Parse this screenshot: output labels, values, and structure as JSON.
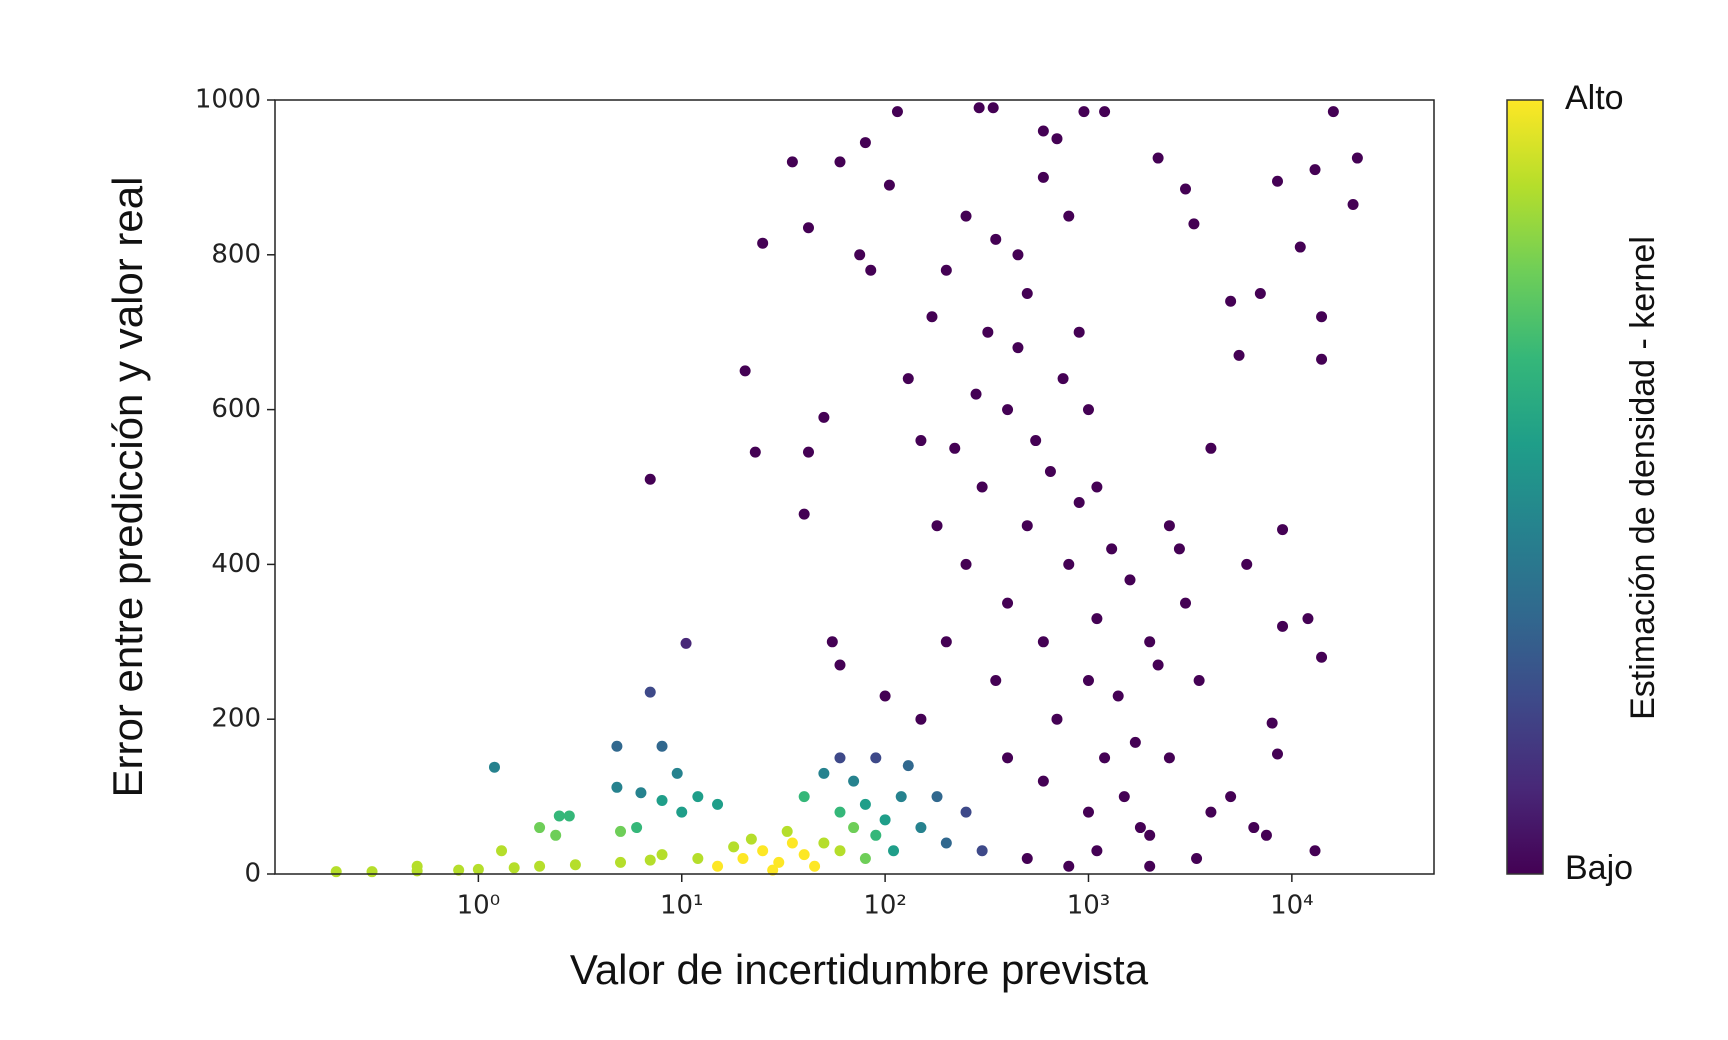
{
  "chart_data": {
    "type": "scatter",
    "x_label": "Valor de incertidumbre prevista",
    "y_label": "Error entre predicción y valor real",
    "xscale": "log",
    "xlim": [
      0.1,
      50000
    ],
    "xticks": [
      {
        "value": 1,
        "label": "10⁰"
      },
      {
        "value": 10,
        "label": "10¹"
      },
      {
        "value": 100,
        "label": "10²"
      },
      {
        "value": 1000,
        "label": "10³"
      },
      {
        "value": 10000,
        "label": "10⁴"
      }
    ],
    "ylim": [
      0,
      1000
    ],
    "yticks": [
      0,
      200,
      400,
      600,
      800,
      1000
    ],
    "grid": false,
    "colorbar": {
      "label": "Estimación de densidad - kernel",
      "high_label": "Alto",
      "low_label": "Bajo",
      "colors": [
        "#440154",
        "#482878",
        "#3e4989",
        "#31688e",
        "#26828e",
        "#1f9e89",
        "#35b779",
        "#6ece58",
        "#b5de2b",
        "#fde725"
      ]
    },
    "series": [
      {
        "color": "#440154",
        "x": [
          7,
          20.5,
          23,
          25,
          150,
          200,
          250,
          300,
          350,
          400,
          500,
          600,
          700,
          800,
          1000,
          1200,
          1500,
          2000,
          2500,
          180,
          220,
          280,
          320,
          400,
          450,
          500,
          600,
          700,
          800,
          900,
          1000,
          1100,
          1300,
          1600,
          2000,
          2500,
          3000,
          3500,
          4000,
          5000,
          5500,
          6000,
          7000,
          8000,
          8500,
          9000,
          9000,
          11000,
          12000,
          13000,
          14000,
          14000,
          14000,
          16000,
          20000,
          21000,
          13000,
          8500,
          3300,
          3000,
          2200,
          1200,
          950,
          600,
          340,
          290,
          115,
          105,
          80,
          60,
          35,
          42,
          75,
          85,
          40,
          42,
          50,
          55,
          60,
          100,
          130,
          150,
          170,
          200,
          250,
          350,
          450,
          550,
          650,
          750,
          900,
          1100,
          1400,
          1700,
          2200,
          2800,
          1800,
          1000,
          600,
          400,
          5000,
          4000,
          3400,
          6500,
          7500,
          1100,
          800,
          500,
          2000
        ],
        "values": [
          510,
          650,
          545,
          815,
          200,
          300,
          400,
          500,
          250,
          350,
          450,
          300,
          200,
          400,
          250,
          150,
          100,
          50,
          150,
          450,
          550,
          620,
          700,
          600,
          800,
          750,
          900,
          950,
          850,
          700,
          600,
          500,
          420,
          380,
          300,
          450,
          350,
          250,
          550,
          740,
          670,
          400,
          750,
          195,
          155,
          320,
          445,
          810,
          330,
          30,
          720,
          665,
          280,
          985,
          865,
          925,
          910,
          895,
          840,
          885,
          925,
          985,
          985,
          960,
          990,
          990,
          985,
          890,
          945,
          920,
          920,
          835,
          800,
          780,
          465,
          545,
          590,
          300,
          270,
          230,
          640,
          560,
          720,
          780,
          850,
          820,
          680,
          560,
          520,
          640,
          480,
          330,
          230,
          170,
          270,
          420,
          60,
          80,
          120,
          150,
          100,
          80,
          20,
          60,
          50,
          30,
          10,
          20,
          10
        ]
      },
      {
        "color": "#482878",
        "x": [
          10.5
        ],
        "values": [
          298
        ]
      },
      {
        "color": "#3e4989",
        "x": [
          7,
          90,
          250,
          300,
          60
        ],
        "values": [
          235,
          150,
          80,
          30,
          150
        ]
      },
      {
        "color": "#31688e",
        "x": [
          4.8,
          8,
          200,
          180,
          130
        ],
        "values": [
          165,
          165,
          40,
          100,
          140
        ]
      },
      {
        "color": "#26828e",
        "x": [
          4.8,
          6.3,
          9.5,
          1.2,
          120,
          70,
          150,
          50
        ],
        "values": [
          112,
          105,
          130,
          138,
          100,
          120,
          60,
          130
        ]
      },
      {
        "color": "#1f9e89",
        "x": [
          8,
          10,
          12,
          15,
          100,
          110,
          80
        ],
        "values": [
          95,
          80,
          100,
          90,
          70,
          30,
          90
        ]
      },
      {
        "color": "#35b779",
        "x": [
          2.5,
          2.8,
          6,
          90,
          60,
          40
        ],
        "values": [
          75,
          75,
          60,
          50,
          80,
          100
        ]
      },
      {
        "color": "#6ece58",
        "x": [
          2,
          2.4,
          5,
          70,
          80
        ],
        "values": [
          60,
          50,
          55,
          60,
          20
        ]
      },
      {
        "color": "#b5de2b",
        "x": [
          18,
          50,
          22,
          60,
          12,
          33,
          0.2,
          0.3,
          0.5,
          0.5,
          0.8,
          1,
          1.5,
          2,
          3,
          5,
          7,
          8,
          1.3
        ],
        "values": [
          35,
          40,
          45,
          30,
          20,
          55,
          3,
          3,
          4,
          10,
          5,
          6,
          8,
          10,
          12,
          15,
          18,
          25,
          30
        ]
      },
      {
        "color": "#fde725",
        "x": [
          15,
          20,
          25,
          30,
          35,
          40,
          28,
          45
        ],
        "values": [
          10,
          20,
          30,
          15,
          40,
          25,
          5,
          10
        ]
      }
    ]
  }
}
